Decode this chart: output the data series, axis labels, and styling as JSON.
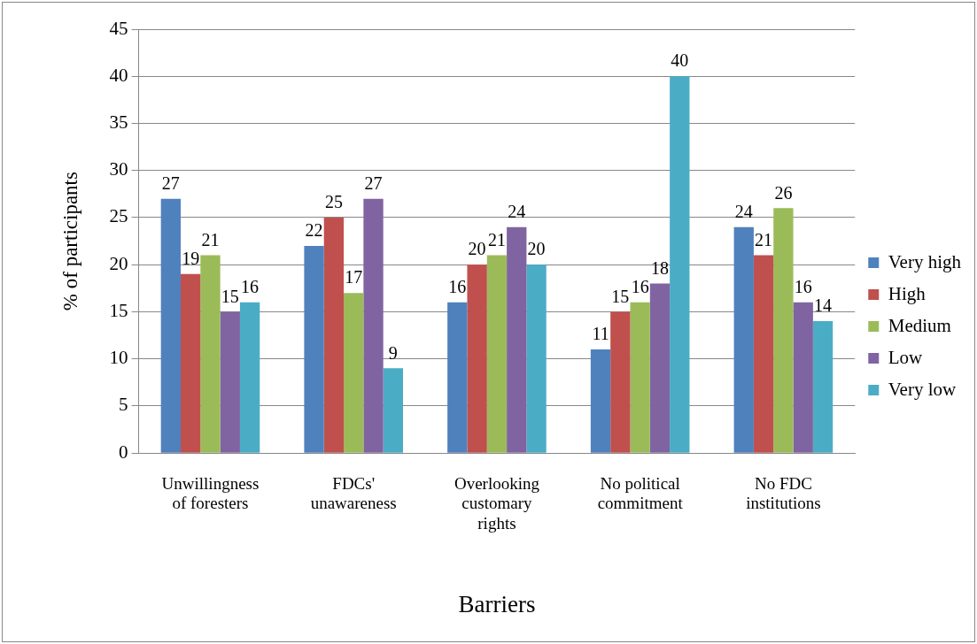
{
  "chart_data": {
    "type": "bar",
    "xlabel": "Barriers",
    "ylabel": "% of participants",
    "categories": [
      "Unwillingness of foresters",
      "FDCs' unawareness",
      "Overlooking customary rights",
      "No political commitment",
      "No FDC institutions"
    ],
    "series": [
      {
        "name": "Very high",
        "color": "#4f81bd",
        "values": [
          27,
          22,
          16,
          11,
          24
        ]
      },
      {
        "name": "High",
        "color": "#c0504d",
        "values": [
          19,
          25,
          20,
          15,
          21
        ]
      },
      {
        "name": "Medium",
        "color": "#9bbb59",
        "values": [
          21,
          17,
          21,
          16,
          26
        ]
      },
      {
        "name": "Low",
        "color": "#8064a2",
        "values": [
          15,
          27,
          24,
          18,
          16
        ]
      },
      {
        "name": "Very low",
        "color": "#4bacc6",
        "values": [
          16,
          9,
          20,
          40,
          14
        ]
      }
    ],
    "ylim": [
      0,
      45
    ],
    "yticks": [
      0,
      5,
      10,
      15,
      20,
      25,
      30,
      35,
      40,
      45
    ],
    "grid": "y",
    "legend": "right",
    "data_labels": true
  }
}
